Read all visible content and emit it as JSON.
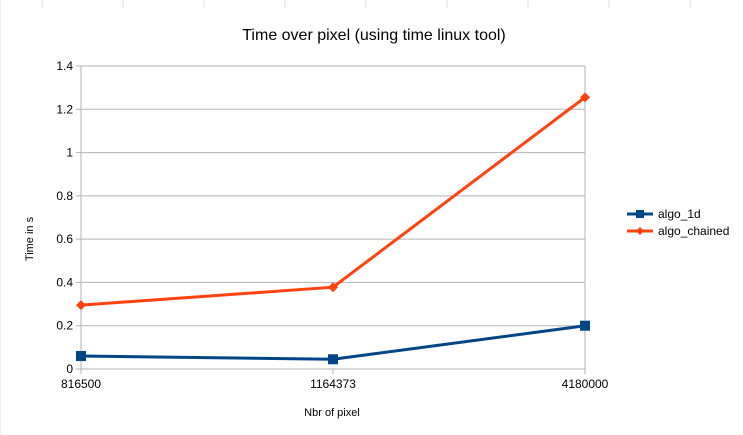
{
  "chart_data": {
    "type": "line",
    "title": "Time over pixel (using time linux tool)",
    "xlabel": "Nbr of pixel",
    "ylabel": "Time in s",
    "categories": [
      "816500",
      "1164373",
      "4180000"
    ],
    "ylim": [
      0,
      1.4
    ],
    "yticks": [
      "0",
      "0.2",
      "0.4",
      "0.6",
      "0.8",
      "1",
      "1.2",
      "1.4"
    ],
    "grid": true,
    "legend_position": "right",
    "series": [
      {
        "name": "algo_1d",
        "values": [
          0.06,
          0.045,
          0.2
        ],
        "color": "#004586",
        "marker": "square"
      },
      {
        "name": "algo_chained",
        "values": [
          0.295,
          0.378,
          1.255
        ],
        "color": "#ff420e",
        "marker": "diamond"
      }
    ]
  }
}
